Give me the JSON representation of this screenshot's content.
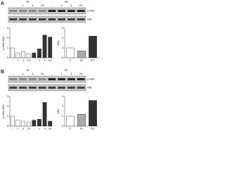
{
  "panels": [
    {
      "label": "A",
      "blot": {
        "columns": [
          "-",
          "1",
          "4",
          "24",
          "-",
          "1",
          "4",
          "24"
        ],
        "groups": [
          "IR",
          "RT"
        ],
        "rows": [
          "p-ABL",
          "ABL"
        ]
      },
      "charts": [
        {
          "type": "bar",
          "ylabel": "p-ABL/ABL",
          "categories": [
            "-",
            "1",
            "4",
            "24",
            "-",
            "1",
            "4",
            "24"
          ],
          "values": [
            1,
            0.5,
            0.6,
            0.4,
            0.5,
            0.9,
            2.3,
            2.1
          ],
          "colors": [
            "#ffffff",
            "#ffffff",
            "#ffffff",
            "#ffffff",
            "#333333",
            "#333333",
            "#333333",
            "#333333"
          ],
          "ylim": [
            0,
            3
          ],
          "yticks": [
            0,
            1,
            2,
            3
          ]
        },
        {
          "type": "bar",
          "ylabel": "ABL",
          "categories": [
            "C",
            "IR",
            "RT"
          ],
          "values": [
            1,
            0.7,
            2.2
          ],
          "colors": [
            "#ffffff",
            "#aaaaaa",
            "#333333"
          ],
          "ylim": [
            0,
            3
          ],
          "yticks": [
            0,
            1,
            2,
            3
          ]
        }
      ]
    },
    {
      "label": "B",
      "blot": {
        "columns": [
          "-",
          "1",
          "4",
          "24",
          "-",
          "1",
          "4",
          "24"
        ],
        "groups": [
          "IR",
          "RT"
        ],
        "rows": [
          "p-ABL",
          "ABL"
        ]
      },
      "charts": [
        {
          "type": "bar",
          "ylabel": "p-ABL/ABL",
          "categories": [
            "-",
            "1",
            "4",
            "24",
            "-",
            "1",
            "4",
            "24"
          ],
          "values": [
            1,
            0.6,
            0.5,
            0.4,
            0.6,
            0.7,
            2.4,
            0.5
          ],
          "colors": [
            "#ffffff",
            "#ffffff",
            "#ffffff",
            "#ffffff",
            "#333333",
            "#333333",
            "#333333",
            "#333333"
          ],
          "ylim": [
            0,
            3
          ],
          "yticks": [
            0,
            1,
            2,
            3
          ]
        },
        {
          "type": "bar",
          "ylabel": "ABL",
          "categories": [
            "C",
            "IR",
            "RT"
          ],
          "values": [
            1,
            1.2,
            2.6
          ],
          "colors": [
            "#ffffff",
            "#aaaaaa",
            "#333333"
          ],
          "ylim": [
            0,
            3
          ],
          "yticks": [
            0,
            1,
            2,
            3
          ]
        }
      ]
    }
  ]
}
